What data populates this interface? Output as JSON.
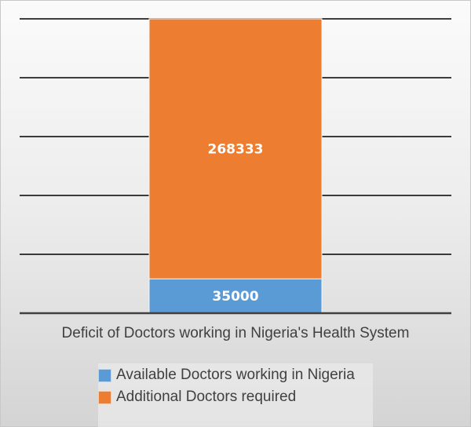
{
  "chart_data": {
    "type": "bar",
    "stacked": true,
    "title": "Deficit of Doctors working in Nigeria's Health System",
    "categories": [
      ""
    ],
    "series": [
      {
        "name": "Available Doctors working in Nigeria",
        "values": [
          35000
        ],
        "color": "#5b9bd5"
      },
      {
        "name": "Additional Doctors required",
        "values": [
          268333
        ],
        "color": "#ed7d31"
      }
    ],
    "data_labels": [
      "35000",
      "268333"
    ],
    "ylim": [
      0,
      300000
    ],
    "y_gridline_step": 60000,
    "y_tick_labels_shown": false,
    "grid": true,
    "legend_position": "bottom"
  }
}
